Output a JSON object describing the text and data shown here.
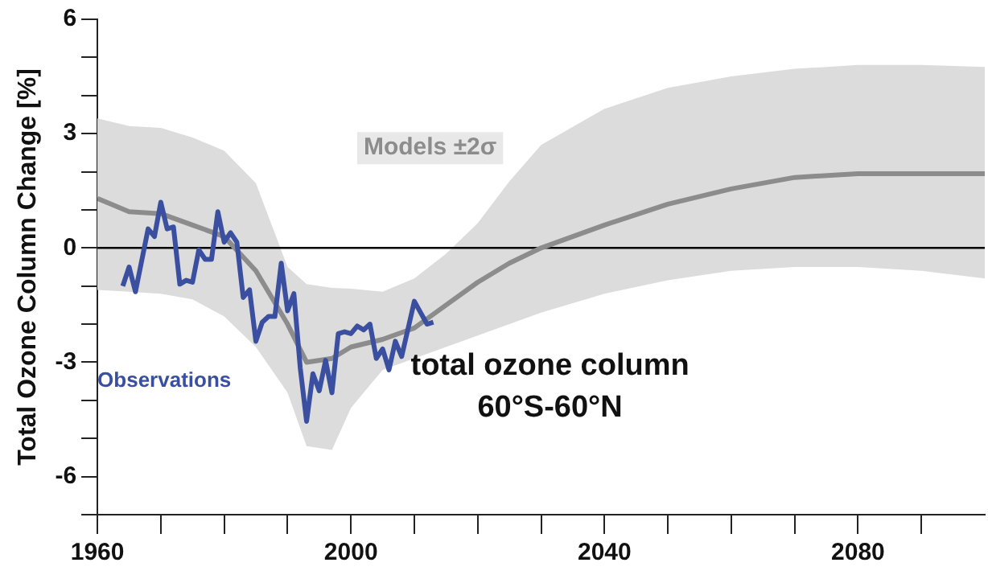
{
  "chart_data": {
    "type": "line",
    "ylabel": "Total Ozone Column Change [%]",
    "annotations": [
      "total ozone column",
      "60°S-60°N"
    ],
    "xlim": [
      1960,
      2100
    ],
    "xticks": [
      1960,
      {
        "value": 1970,
        "label": null
      },
      {
        "value": 1980,
        "label": null
      },
      {
        "value": 1990,
        "label": null
      },
      2000,
      {
        "value": 2010,
        "label": null
      },
      {
        "value": 2020,
        "label": null
      },
      {
        "value": 2030,
        "label": null
      },
      2040,
      {
        "value": 2050,
        "label": null
      },
      {
        "value": 2060,
        "label": null
      },
      {
        "value": 2070,
        "label": null
      },
      2080,
      {
        "value": 2090,
        "label": null
      }
    ],
    "ylim": [
      -7,
      6
    ],
    "yticks": [
      {
        "value": -7,
        "label": null
      },
      -6,
      {
        "value": -5,
        "label": null
      },
      {
        "value": -4,
        "label": null
      },
      -3,
      {
        "value": -2,
        "label": null
      },
      {
        "value": -1,
        "label": null
      },
      0,
      {
        "value": 1,
        "label": null
      },
      {
        "value": 2,
        "label": null
      },
      3,
      {
        "value": 4,
        "label": null
      },
      {
        "value": 5,
        "label": null
      },
      6
    ],
    "grid": false,
    "legend": false,
    "marker": "none",
    "line_style": "solid",
    "ref_lines": [
      {
        "axis": "y",
        "value": 0,
        "label": null,
        "color": "#000000"
      }
    ],
    "series": [
      {
        "name": "Models ±2σ",
        "color": "#8c8c8c",
        "x": [
          1960,
          1965,
          1970,
          1975,
          1980,
          1985,
          1990,
          1993,
          1997,
          2000,
          2005,
          2010,
          2015,
          2020,
          2025,
          2030,
          2040,
          2050,
          2060,
          2070,
          2080,
          2090,
          2100
        ],
        "values": [
          1.3,
          0.95,
          0.9,
          0.6,
          0.3,
          -0.6,
          -2.0,
          -3.0,
          -2.9,
          -2.6,
          -2.4,
          -2.1,
          -1.5,
          -0.9,
          -0.4,
          0,
          0.6,
          1.15,
          1.55,
          1.85,
          1.95,
          1.95,
          1.95
        ],
        "lower": [
          -1.1,
          -1.15,
          -1.2,
          -1.35,
          -1.8,
          -2.6,
          -3.8,
          -5.2,
          -5.3,
          -4.2,
          -3.2,
          -2.9,
          -2.6,
          -2.3,
          -2.0,
          -1.7,
          -1.2,
          -0.85,
          -0.6,
          -0.5,
          -0.5,
          -0.6,
          -0.8
        ],
        "upper": [
          3.4,
          3.2,
          3.15,
          2.9,
          2.55,
          1.7,
          -0.5,
          -0.95,
          -1.05,
          -1.07,
          -1.15,
          -0.8,
          -0.15,
          0.65,
          1.75,
          2.7,
          3.65,
          4.2,
          4.5,
          4.7,
          4.8,
          4.8,
          4.75
        ]
      },
      {
        "name": "Observations",
        "color": "#3a4fa0",
        "x": [
          1964,
          1965,
          1966,
          1968,
          1969,
          1970,
          1971,
          1972,
          1973,
          1974,
          1975,
          1976,
          1977,
          1978,
          1979,
          1980,
          1981,
          1982,
          1983,
          1984,
          1985,
          1986,
          1987,
          1988,
          1989,
          1990,
          1991,
          1992,
          1993,
          1994,
          1995,
          1996,
          1997,
          1998,
          1999,
          2000,
          2001,
          2002,
          2003,
          2004,
          2005,
          2006,
          2007,
          2008,
          2010,
          2011,
          2012,
          2013
        ],
        "values": [
          -1.0,
          -0.5,
          -1.15,
          0.5,
          0.3,
          1.2,
          0.5,
          0.55,
          -0.95,
          -0.85,
          -0.9,
          -0.05,
          -0.3,
          -0.3,
          0.95,
          0.15,
          0.4,
          0.15,
          -1.3,
          -1.1,
          -2.45,
          -1.95,
          -1.8,
          -1.8,
          -0.4,
          -1.65,
          -1.2,
          -3.15,
          -4.55,
          -3.3,
          -3.75,
          -2.95,
          -3.8,
          -2.25,
          -2.2,
          -2.25,
          -2.05,
          -2.15,
          -2.0,
          -2.9,
          -2.65,
          -3.2,
          -2.45,
          -2.85,
          -1.4,
          -1.7,
          -2.0,
          -1.95
        ]
      }
    ]
  }
}
